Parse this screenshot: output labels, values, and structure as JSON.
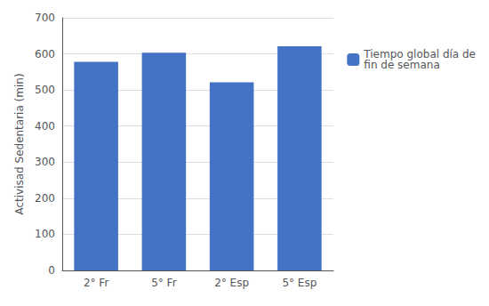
{
  "chart_data": {
    "type": "bar",
    "categories": [
      "2° Fr",
      "5° Fr",
      "2° Esp",
      "5° Esp"
    ],
    "series": [
      {
        "name": "Tiempo global día de\nfin de semana",
        "color": "#4472C4",
        "values": [
          578,
          603,
          521,
          621
        ]
      }
    ],
    "ylabel": "Activisad Sedentaria (min)",
    "ylim": [
      0,
      700
    ],
    "yticks": [
      0,
      100,
      200,
      300,
      400,
      500,
      600,
      700
    ],
    "grid": true,
    "legend": "right"
  }
}
